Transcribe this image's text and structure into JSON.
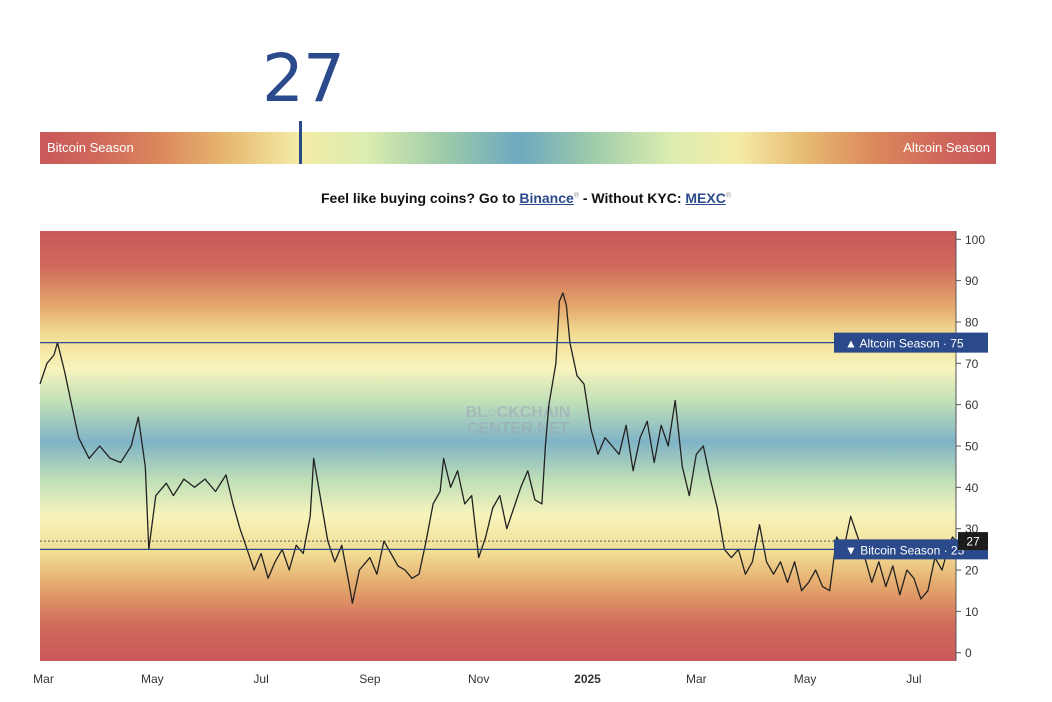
{
  "index": {
    "value": "27",
    "left_label": "Bitcoin Season",
    "right_label": "Altcoin Season"
  },
  "promo": {
    "prefix": "Feel like buying coins? Go to",
    "link1": "Binance",
    "middle": "- Without KYC:",
    "link2": "MEXC",
    "mark": "®"
  },
  "colors": {
    "accent": "#2b4a8c",
    "altcoin_zone": "#c9585a",
    "neutral_zone": "#6da9c0",
    "line": "#222222"
  },
  "chart_data": {
    "type": "line",
    "series": [
      {
        "values": [
          [
            0,
            65
          ],
          [
            2,
            70
          ],
          [
            4,
            72
          ],
          [
            5,
            75
          ],
          [
            7,
            68
          ],
          [
            9,
            60
          ],
          [
            11,
            52
          ],
          [
            14,
            47
          ],
          [
            17,
            50
          ],
          [
            20,
            47
          ],
          [
            23,
            46
          ],
          [
            26,
            50
          ],
          [
            28,
            57
          ],
          [
            30,
            45
          ],
          [
            31,
            25
          ],
          [
            33,
            38
          ],
          [
            36,
            41
          ],
          [
            38,
            38
          ],
          [
            41,
            42
          ],
          [
            44,
            40
          ],
          [
            47,
            42
          ],
          [
            50,
            39
          ],
          [
            53,
            43
          ],
          [
            55,
            36
          ],
          [
            57,
            30
          ],
          [
            59,
            25
          ],
          [
            61,
            20
          ],
          [
            63,
            24
          ],
          [
            65,
            18
          ],
          [
            67,
            22
          ],
          [
            69,
            25
          ],
          [
            71,
            20
          ],
          [
            73,
            26
          ],
          [
            75,
            24
          ],
          [
            77,
            33
          ],
          [
            78,
            47
          ],
          [
            80,
            37
          ],
          [
            82,
            27
          ],
          [
            84,
            22
          ],
          [
            86,
            26
          ],
          [
            88,
            17
          ],
          [
            89,
            12
          ],
          [
            91,
            20
          ],
          [
            94,
            23
          ],
          [
            96,
            19
          ],
          [
            98,
            27
          ],
          [
            100,
            24
          ],
          [
            102,
            21
          ],
          [
            104,
            20
          ],
          [
            106,
            18
          ],
          [
            108,
            19
          ],
          [
            110,
            27
          ],
          [
            112,
            36
          ],
          [
            114,
            39
          ],
          [
            115,
            47
          ],
          [
            117,
            40
          ],
          [
            119,
            44
          ],
          [
            121,
            36
          ],
          [
            123,
            38
          ],
          [
            125,
            23
          ],
          [
            127,
            28
          ],
          [
            129,
            35
          ],
          [
            131,
            38
          ],
          [
            133,
            30
          ],
          [
            135,
            35
          ],
          [
            137,
            40
          ],
          [
            139,
            44
          ],
          [
            141,
            37
          ],
          [
            143,
            36
          ],
          [
            144,
            50
          ],
          [
            145,
            60
          ],
          [
            147,
            70
          ],
          [
            148,
            85
          ],
          [
            149,
            87
          ],
          [
            150,
            84
          ],
          [
            151,
            75
          ],
          [
            153,
            67
          ],
          [
            155,
            65
          ],
          [
            157,
            54
          ],
          [
            159,
            48
          ],
          [
            161,
            52
          ],
          [
            163,
            50
          ],
          [
            165,
            48
          ],
          [
            167,
            55
          ],
          [
            169,
            44
          ],
          [
            171,
            52
          ],
          [
            173,
            56
          ],
          [
            175,
            46
          ],
          [
            177,
            55
          ],
          [
            179,
            50
          ],
          [
            181,
            61
          ],
          [
            183,
            45
          ],
          [
            185,
            38
          ],
          [
            187,
            48
          ],
          [
            189,
            50
          ],
          [
            191,
            42
          ],
          [
            193,
            35
          ],
          [
            195,
            25
          ],
          [
            197,
            23
          ],
          [
            199,
            25
          ],
          [
            201,
            19
          ],
          [
            203,
            22
          ],
          [
            205,
            31
          ],
          [
            207,
            22
          ],
          [
            209,
            19
          ],
          [
            211,
            22
          ],
          [
            213,
            17
          ],
          [
            215,
            22
          ],
          [
            217,
            15
          ],
          [
            219,
            17
          ],
          [
            221,
            20
          ],
          [
            223,
            16
          ],
          [
            225,
            15
          ],
          [
            227,
            28
          ],
          [
            229,
            25
          ],
          [
            231,
            33
          ],
          [
            233,
            28
          ],
          [
            235,
            23
          ],
          [
            237,
            17
          ],
          [
            239,
            22
          ],
          [
            241,
            16
          ],
          [
            243,
            21
          ],
          [
            245,
            14
          ],
          [
            247,
            20
          ],
          [
            249,
            18
          ],
          [
            251,
            13
          ],
          [
            253,
            15
          ],
          [
            255,
            23
          ],
          [
            257,
            20
          ],
          [
            259,
            26
          ],
          [
            260,
            28
          ],
          [
            261,
            27
          ]
        ]
      }
    ],
    "x_ticks": [
      {
        "x": 1,
        "label": "Mar"
      },
      {
        "x": 32,
        "label": "May"
      },
      {
        "x": 63,
        "label": "Jul"
      },
      {
        "x": 94,
        "label": "Sep"
      },
      {
        "x": 125,
        "label": "Nov"
      },
      {
        "x": 156,
        "label": "2025"
      },
      {
        "x": 187,
        "label": "Mar"
      },
      {
        "x": 218,
        "label": "May"
      },
      {
        "x": 249,
        "label": "Jul"
      }
    ],
    "xlim": [
      0,
      261
    ],
    "ylim": [
      -2,
      102
    ],
    "y_ticks": [
      0,
      10,
      20,
      30,
      40,
      50,
      60,
      70,
      80,
      90,
      100
    ],
    "thresholds": [
      {
        "value": 75,
        "label": "▲ Altcoin Season · 75"
      },
      {
        "value": 25,
        "label": "▼ Bitcoin Season · 25"
      }
    ],
    "current": {
      "value": 27,
      "label": "27"
    },
    "watermark": [
      "BL○CKCHAIN",
      "CENTER.NET"
    ],
    "grid": false
  }
}
